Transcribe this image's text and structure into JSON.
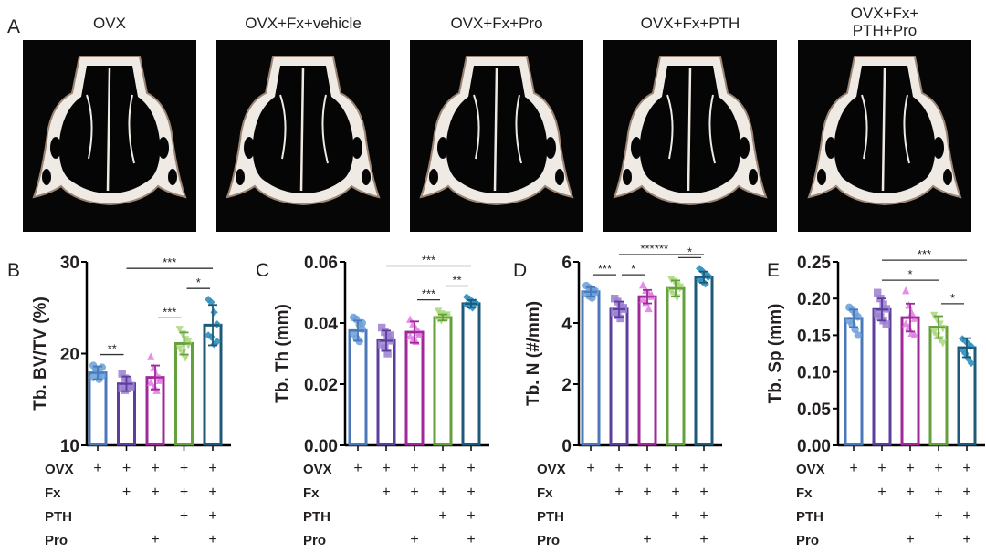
{
  "panel_a": {
    "letter": "A",
    "images": [
      {
        "title_lines": [
          "OVX"
        ]
      },
      {
        "title_lines": [
          "OVX+Fx+vehicle"
        ]
      },
      {
        "title_lines": [
          "OVX+Fx+Pro"
        ]
      },
      {
        "title_lines": [
          "OVX+Fx+PTH"
        ]
      },
      {
        "title_lines": [
          "OVX+Fx+",
          "PTH+Pro"
        ]
      }
    ]
  },
  "groups": [
    "OVX",
    "OVX+Fx+vehicle",
    "OVX+Fx+Pro",
    "OVX+Fx+PTH",
    "OVX+Fx+PTH+Pro"
  ],
  "colors": [
    "#4a78b8",
    "#5b3e9e",
    "#a0289a",
    "#64a03c",
    "#1e5a78"
  ],
  "point_colors": [
    "#6a9fd8",
    "#9b7fd0",
    "#e07ae0",
    "#a9d67a",
    "#2f8fbf"
  ],
  "markers": [
    "circle",
    "square",
    "triangle-up",
    "triangle-down",
    "diamond"
  ],
  "treatment_table": {
    "rows": [
      {
        "label": "OVX",
        "marks": [
          "+",
          "+",
          "+",
          "+",
          "+"
        ]
      },
      {
        "label": "Fx",
        "marks": [
          "",
          "+",
          "+",
          "+",
          "+"
        ]
      },
      {
        "label": "PTH",
        "marks": [
          "",
          "",
          "",
          "+",
          "+"
        ]
      },
      {
        "label": "Pro",
        "marks": [
          "",
          "",
          "+",
          "",
          "+"
        ]
      }
    ]
  },
  "chart_data": [
    {
      "panel": "B",
      "type": "bar",
      "ylabel": "Tb. BV/TV (%)",
      "categories": [
        "OVX",
        "OVX+Fx+vehicle",
        "OVX+Fx+Pro",
        "OVX+Fx+PTH",
        "OVX+Fx+PTH+Pro"
      ],
      "ylim": [
        10,
        30
      ],
      "yticks": [
        "10",
        "20",
        "30"
      ],
      "ytick_values": [
        10,
        20,
        30
      ],
      "means": [
        17.9,
        16.7,
        17.4,
        21.1,
        23.1
      ],
      "sd": [
        0.7,
        0.8,
        1.3,
        1.2,
        2.2
      ],
      "points": [
        [
          18.7,
          18.3,
          17.9,
          17.6,
          17.4,
          18.1,
          17.2,
          18.5
        ],
        [
          17.8,
          17.3,
          16.9,
          16.5,
          16.2,
          16.0,
          17.0,
          16.4
        ],
        [
          19.6,
          18.4,
          17.6,
          17.0,
          16.8,
          16.2,
          15.9,
          17.3
        ],
        [
          22.7,
          22.2,
          21.6,
          21.0,
          20.6,
          20.1,
          19.6,
          21.4
        ],
        [
          25.9,
          25.6,
          24.5,
          23.2,
          22.0,
          21.8,
          21.0,
          21.3
        ]
      ],
      "significance": [
        {
          "from": 0,
          "to": 1,
          "label": "**"
        },
        {
          "from": 1,
          "to": 4,
          "label": "***"
        },
        {
          "from": 2,
          "to": 3,
          "label": "***"
        },
        {
          "from": 3,
          "to": 4,
          "label": "*"
        }
      ]
    },
    {
      "panel": "C",
      "type": "bar",
      "ylabel": "Tb. Th (mm)",
      "categories": [
        "OVX",
        "OVX+Fx+vehicle",
        "OVX+Fx+Pro",
        "OVX+Fx+PTH",
        "OVX+Fx+PTH+Pro"
      ],
      "ylim": [
        0,
        0.06
      ],
      "yticks": [
        "0.00",
        "0.02",
        "0.04",
        "0.06"
      ],
      "ytick_values": [
        0,
        0.02,
        0.04,
        0.06
      ],
      "means": [
        0.0375,
        0.0342,
        0.037,
        0.0418,
        0.0463
      ],
      "sd": [
        0.0033,
        0.0033,
        0.0035,
        0.001,
        0.0012
      ],
      "points": [
        [
          0.0418,
          0.0412,
          0.0395,
          0.038,
          0.0365,
          0.035,
          0.034,
          0.04
        ],
        [
          0.0385,
          0.037,
          0.0355,
          0.0342,
          0.033,
          0.0318,
          0.03,
          0.036
        ],
        [
          0.041,
          0.0395,
          0.038,
          0.0368,
          0.0355,
          0.0345,
          0.0338,
          0.036
        ],
        [
          0.044,
          0.0432,
          0.0425,
          0.042,
          0.0415,
          0.041,
          0.0418,
          0.0428
        ],
        [
          0.0485,
          0.0478,
          0.047,
          0.0465,
          0.046,
          0.0455,
          0.045,
          0.0468
        ]
      ],
      "significance": [
        {
          "from": 1,
          "to": 4,
          "label": "***"
        },
        {
          "from": 2,
          "to": 3,
          "label": "***"
        },
        {
          "from": 3,
          "to": 4,
          "label": "**"
        }
      ]
    },
    {
      "panel": "D",
      "type": "bar",
      "ylabel": "Tb. N (#/mm)",
      "categories": [
        "OVX",
        "OVX+Fx+vehicle",
        "OVX+Fx+Pro",
        "OVX+Fx+PTH",
        "OVX+Fx+PTH+Pro"
      ],
      "ylim": [
        0,
        6
      ],
      "yticks": [
        "0",
        "2",
        "4",
        "6"
      ],
      "ytick_values": [
        0,
        2,
        4,
        6
      ],
      "means": [
        5.02,
        4.45,
        4.86,
        5.13,
        5.5
      ],
      "sd": [
        0.15,
        0.25,
        0.22,
        0.26,
        0.18
      ],
      "points": [
        [
          5.22,
          5.15,
          5.08,
          5.0,
          4.95,
          4.88,
          4.82,
          5.05
        ],
        [
          4.8,
          4.7,
          4.58,
          4.45,
          4.35,
          4.25,
          4.15,
          4.5
        ],
        [
          5.22,
          5.05,
          4.95,
          4.85,
          4.75,
          4.65,
          4.45,
          4.9
        ],
        [
          5.45,
          5.38,
          5.25,
          5.15,
          5.05,
          4.95,
          4.85,
          5.2
        ],
        [
          5.78,
          5.7,
          5.58,
          5.5,
          5.42,
          5.35,
          5.28,
          5.55
        ]
      ],
      "significance": [
        {
          "from": 0,
          "to": 1,
          "label": "***"
        },
        {
          "from": 1,
          "to": 2,
          "label": "*"
        },
        {
          "from": 1,
          "to": 3,
          "label": "***"
        },
        {
          "from": 1,
          "to": 4,
          "label": "***"
        },
        {
          "from": 3,
          "to": 4,
          "label": "*"
        }
      ]
    },
    {
      "panel": "E",
      "type": "bar",
      "ylabel": "Tb. Sp (mm)",
      "categories": [
        "OVX",
        "OVX+Fx+vehicle",
        "OVX+Fx+Pro",
        "OVX+Fx+PTH",
        "OVX+Fx+PTH+Pro"
      ],
      "ylim": [
        0,
        0.25
      ],
      "yticks": [
        "0.00",
        "0.05",
        "0.10",
        "0.15",
        "0.20",
        "0.25"
      ],
      "ytick_values": [
        0,
        0.05,
        0.1,
        0.15,
        0.2,
        0.25
      ],
      "means": [
        0.173,
        0.185,
        0.174,
        0.161,
        0.133
      ],
      "sd": [
        0.012,
        0.015,
        0.019,
        0.015,
        0.013
      ],
      "points": [
        [
          0.188,
          0.185,
          0.18,
          0.175,
          0.17,
          0.165,
          0.158,
          0.15
        ],
        [
          0.208,
          0.2,
          0.192,
          0.186,
          0.18,
          0.175,
          0.17,
          0.165
        ],
        [
          0.21,
          0.19,
          0.18,
          0.172,
          0.165,
          0.16,
          0.152,
          0.15
        ],
        [
          0.178,
          0.172,
          0.166,
          0.16,
          0.155,
          0.15,
          0.145,
          0.14
        ],
        [
          0.145,
          0.142,
          0.138,
          0.135,
          0.13,
          0.125,
          0.118,
          0.112
        ]
      ],
      "significance": [
        {
          "from": 1,
          "to": 3,
          "label": "*"
        },
        {
          "from": 1,
          "to": 4,
          "label": "***"
        },
        {
          "from": 3,
          "to": 4,
          "label": "*"
        }
      ]
    }
  ]
}
